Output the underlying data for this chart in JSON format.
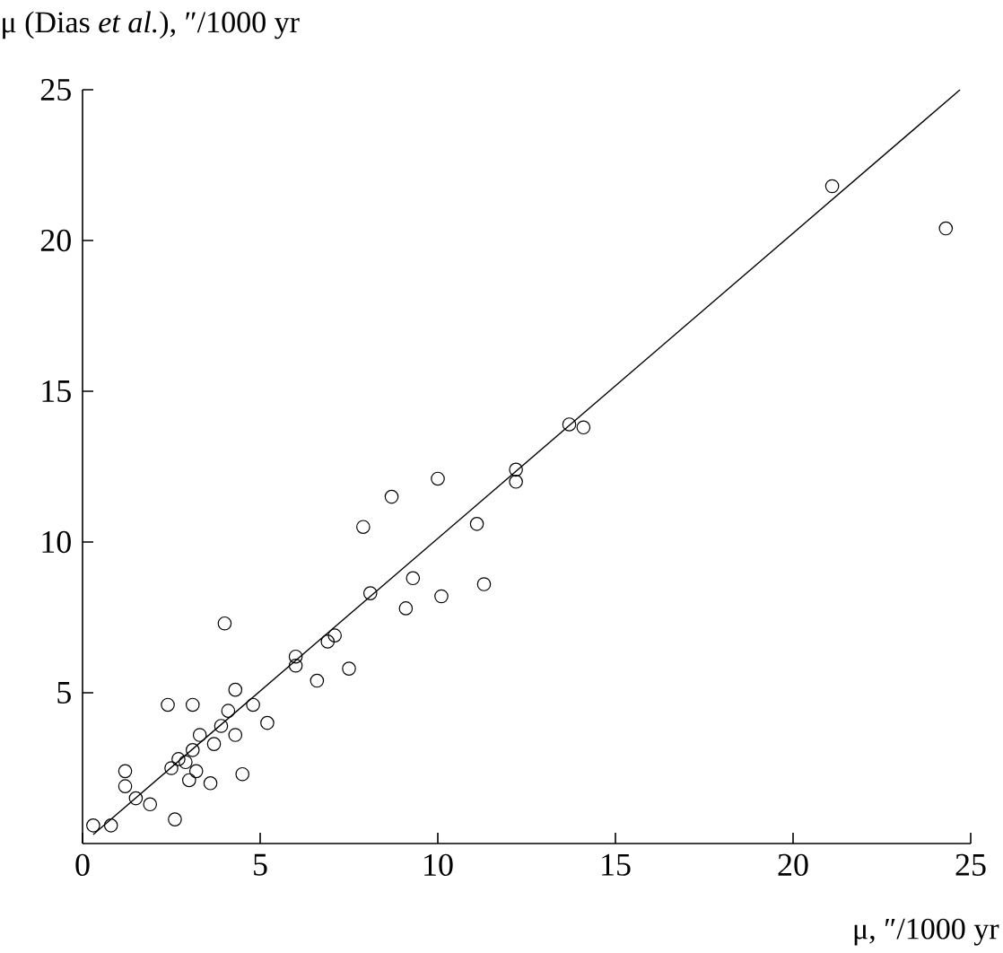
{
  "chart_data": {
    "type": "scatter",
    "xlabel": "μ, ″/1000 yr",
    "ylabel": "μ (Dias *et al.*), ″/1000 yr",
    "xlim": [
      0,
      25
    ],
    "ylim": [
      0,
      25
    ],
    "xticks": [
      0,
      5,
      10,
      15,
      20,
      25
    ],
    "yticks": [
      5,
      10,
      15,
      20,
      25
    ],
    "grid": false,
    "marker": "circle",
    "series": [
      {
        "color": "#000000",
        "x": [
          0.3,
          0.8,
          1.2,
          1.2,
          1.5,
          1.9,
          2.6,
          2.5,
          2.4,
          3.1,
          2.7,
          2.9,
          3.0,
          3.2,
          3.3,
          3.1,
          3.6,
          3.7,
          3.9,
          4.0,
          4.1,
          4.3,
          4.3,
          4.5,
          4.8,
          5.2,
          6.0,
          6.0,
          6.6,
          6.9,
          7.1,
          7.5,
          8.1,
          7.9,
          8.7,
          10.0,
          11.1,
          9.3,
          9.1,
          10.1,
          11.3,
          12.2,
          12.2,
          13.7,
          14.1,
          21.1,
          24.3
        ],
        "values": [
          0.6,
          0.6,
          2.4,
          1.9,
          1.5,
          1.3,
          0.8,
          2.5,
          4.6,
          4.6,
          2.8,
          2.7,
          2.1,
          2.4,
          3.6,
          3.1,
          2.0,
          3.3,
          3.9,
          7.3,
          4.4,
          5.1,
          3.6,
          2.3,
          4.6,
          4.0,
          5.9,
          6.2,
          5.4,
          6.7,
          6.9,
          5.8,
          8.3,
          10.5,
          11.5,
          12.1,
          10.6,
          8.8,
          7.8,
          8.2,
          8.6,
          12.4,
          12.0,
          13.9,
          13.8,
          21.8,
          20.4
        ]
      },
      {
        "type": "line",
        "color": "#000000",
        "marker": "none",
        "line_style": "solid",
        "x": [
          0.3,
          24.7
        ],
        "values": [
          0.3,
          25
        ]
      }
    ]
  }
}
